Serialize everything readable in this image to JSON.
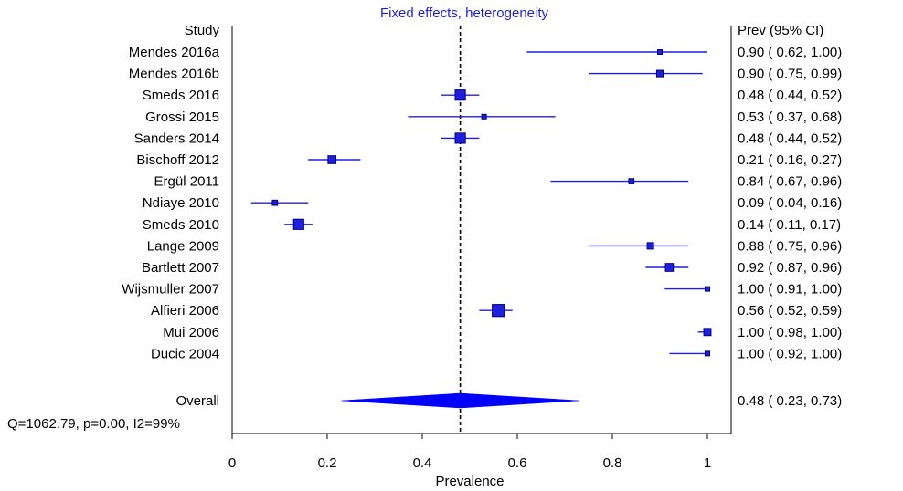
{
  "chart_data": {
    "type": "forest",
    "title": "Fixed effects, heterogeneity",
    "xlabel": "Prevalence",
    "study_header": "Study",
    "estimate_header": "Prev (95% CI)",
    "xlim": [
      0,
      1
    ],
    "xticks": [
      "0",
      "0.2",
      "0.4",
      "0.6",
      "0.8",
      "1"
    ],
    "reference_line": 0.48,
    "colors": {
      "ci": "#1f1fe0",
      "point_fill": "#1f1fe0",
      "point_edge": "#00007f",
      "diamond": "#0000ff",
      "title": "#1f1fe0"
    },
    "studies": [
      {
        "name": "Mendes 2016a",
        "est": 0.9,
        "lo": 0.62,
        "hi": 1.0,
        "weight": 1,
        "label": "0.90 ( 0.62, 1.00)"
      },
      {
        "name": "Mendes 2016b",
        "est": 0.9,
        "lo": 0.75,
        "hi": 0.99,
        "weight": 2,
        "label": "0.90 ( 0.75, 0.99)"
      },
      {
        "name": "Smeds 2016",
        "est": 0.48,
        "lo": 0.44,
        "hi": 0.52,
        "weight": 5,
        "label": "0.48 ( 0.44, 0.52)"
      },
      {
        "name": "Grossi 2015",
        "est": 0.53,
        "lo": 0.37,
        "hi": 0.68,
        "weight": 1,
        "label": "0.53 ( 0.37, 0.68)"
      },
      {
        "name": "Sanders 2014",
        "est": 0.48,
        "lo": 0.44,
        "hi": 0.52,
        "weight": 5,
        "label": "0.48 ( 0.44, 0.52)"
      },
      {
        "name": "Bischoff 2012",
        "est": 0.21,
        "lo": 0.16,
        "hi": 0.27,
        "weight": 3,
        "label": "0.21 ( 0.16, 0.27)"
      },
      {
        "name": "Ergül 2011",
        "est": 0.84,
        "lo": 0.67,
        "hi": 0.96,
        "weight": 1.3,
        "label": "0.84 ( 0.67, 0.96)"
      },
      {
        "name": "Ndiaye 2010",
        "est": 0.09,
        "lo": 0.04,
        "hi": 0.16,
        "weight": 1.3,
        "label": "0.09 ( 0.04, 0.16)"
      },
      {
        "name": "Smeds 2010",
        "est": 0.14,
        "lo": 0.11,
        "hi": 0.17,
        "weight": 5,
        "label": "0.14 ( 0.11, 0.17)"
      },
      {
        "name": "Lange 2009",
        "est": 0.88,
        "lo": 0.75,
        "hi": 0.96,
        "weight": 2,
        "label": "0.88 ( 0.75, 0.96)"
      },
      {
        "name": "Bartlett 2007",
        "est": 0.92,
        "lo": 0.87,
        "hi": 0.96,
        "weight": 3,
        "label": "0.92 ( 0.87, 0.96)"
      },
      {
        "name": "Wijsmuller 2007",
        "est": 1.0,
        "lo": 0.91,
        "hi": 1.0,
        "weight": 1,
        "label": "1.00 ( 0.91, 1.00)"
      },
      {
        "name": "Alfieri 2006",
        "est": 0.56,
        "lo": 0.52,
        "hi": 0.59,
        "weight": 7,
        "label": "0.56 ( 0.52, 0.59)"
      },
      {
        "name": "Mui 2006",
        "est": 1.0,
        "lo": 0.98,
        "hi": 1.0,
        "weight": 2.5,
        "label": "1.00 ( 0.98, 1.00)"
      },
      {
        "name": "Ducic 2004",
        "est": 1.0,
        "lo": 0.92,
        "hi": 1.0,
        "weight": 1,
        "label": "1.00 ( 0.92, 1.00)"
      }
    ],
    "overall": {
      "name": "Overall",
      "est": 0.48,
      "lo": 0.23,
      "hi": 0.73,
      "label": "0.48 ( 0.23, 0.73)"
    },
    "heterogeneity": "Q=1062.79, p=0.00, I2=99%"
  }
}
